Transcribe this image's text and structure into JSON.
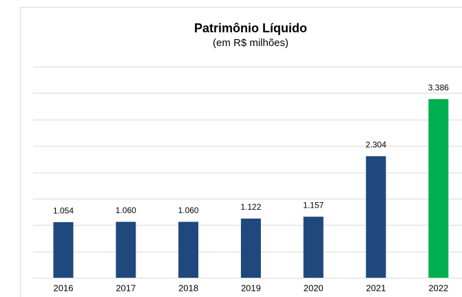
{
  "chart_data": {
    "type": "bar",
    "title": "Patrimônio Líquido",
    "subtitle": "(em R$ milhões)",
    "categories": [
      "2016",
      "2017",
      "2018",
      "2019",
      "2020",
      "2021",
      "2022"
    ],
    "values": [
      1054,
      1060,
      1060,
      1122,
      1157,
      2304,
      3386
    ],
    "value_labels": [
      "1.054",
      "1.060",
      "1.060",
      "1.122",
      "1.157",
      "2.304",
      "3.386"
    ],
    "colors": [
      "#1f497d",
      "#1f497d",
      "#1f497d",
      "#1f497d",
      "#1f497d",
      "#1f497d",
      "#00b050"
    ],
    "ylim": [
      0,
      4000
    ],
    "yticks": [
      0,
      500,
      1000,
      1500,
      2000,
      2500,
      3000,
      3500,
      4000
    ],
    "grid": true
  }
}
